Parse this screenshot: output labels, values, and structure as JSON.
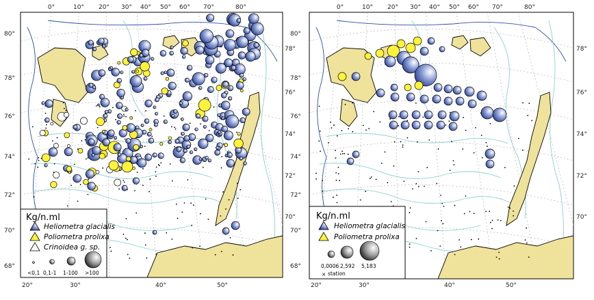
{
  "colors": {
    "land": "#efe29a",
    "ocean": "#ffffff",
    "contour": "#8fcfcf",
    "deep_contour": "#2d4fa8",
    "graticule": "#9a9a9a",
    "heliometra": "#3f57a5",
    "poliometra": "#fff23a"
  },
  "left_map": {
    "top_ticks": [
      "0°",
      "10°",
      "20°",
      "30°",
      "40°",
      "50°",
      "60°",
      "70°",
      "80°"
    ],
    "bottom_ticks": [
      "20°",
      "30°",
      "40°",
      "50°"
    ],
    "left_ticks": [
      "80°",
      "78°",
      "76°",
      "74°",
      "72°",
      "70°",
      "68°"
    ],
    "right_ticks": [
      "78°",
      "76°",
      "74°",
      "72°",
      "70°"
    ],
    "legend": {
      "title": "Kg/n.ml",
      "items": [
        {
          "label": "Heliometra glacialis",
          "icon": "blue-triangle-icon"
        },
        {
          "label": "Poliometra prolixa",
          "icon": "yellow-triangle-icon"
        },
        {
          "label": "Crinoidea g. sp.",
          "icon": "white-triangle-icon"
        }
      ],
      "size_labels": [
        "<0,1",
        "0,1-1",
        "1-100",
        ">100"
      ]
    }
  },
  "right_map": {
    "top_ticks": [
      "0°",
      "10°",
      "20°",
      "30°",
      "40°",
      "50°",
      "60°",
      "70°",
      "80°"
    ],
    "bottom_ticks": [
      "20°",
      "30°",
      "40°",
      "50°"
    ],
    "left_ticks": [
      "80°",
      "78°",
      "76°",
      "74°",
      "72°",
      "70°",
      "68°"
    ],
    "right_ticks": [
      "78°",
      "76°",
      "74°",
      "72°",
      "70°"
    ],
    "legend": {
      "title": "Kg/n.ml",
      "items": [
        {
          "label": "Heliometra glacialis",
          "icon": "blue-triangle-icon"
        },
        {
          "label": "Poliometra prolixa",
          "icon": "yellow-triangle-icon"
        }
      ],
      "size_labels": [
        "0,0006",
        "2,592",
        "5,183"
      ],
      "station_label": "station"
    }
  }
}
